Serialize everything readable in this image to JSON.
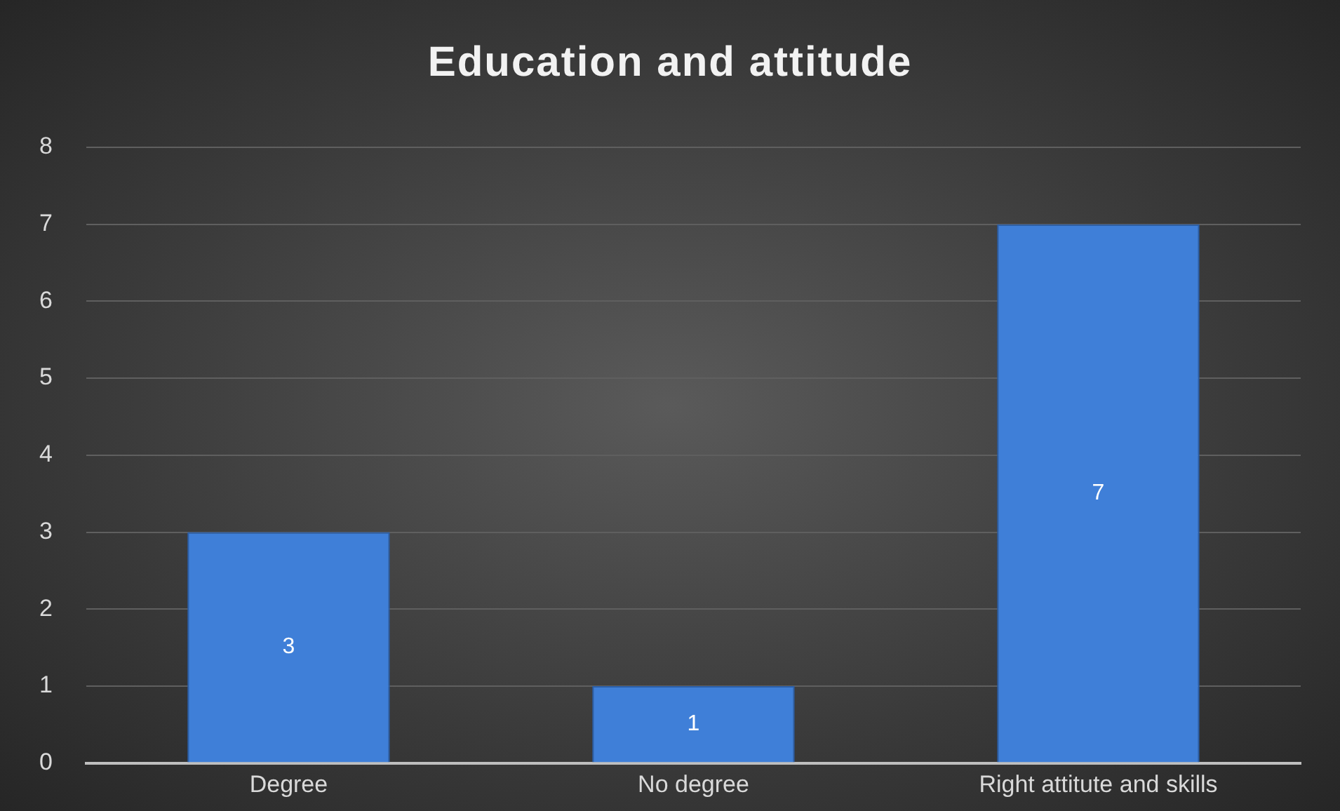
{
  "chart_data": {
    "type": "bar",
    "title": "Education and attitude",
    "categories": [
      "Degree",
      "No degree",
      "Right attitute and skills"
    ],
    "values": [
      3,
      1,
      7
    ],
    "color": "#3f7fd8",
    "ylim": [
      0,
      8
    ],
    "yticks": [
      0,
      1,
      2,
      3,
      4,
      5,
      6,
      7,
      8
    ],
    "grid": "y",
    "data_labels": true
  }
}
